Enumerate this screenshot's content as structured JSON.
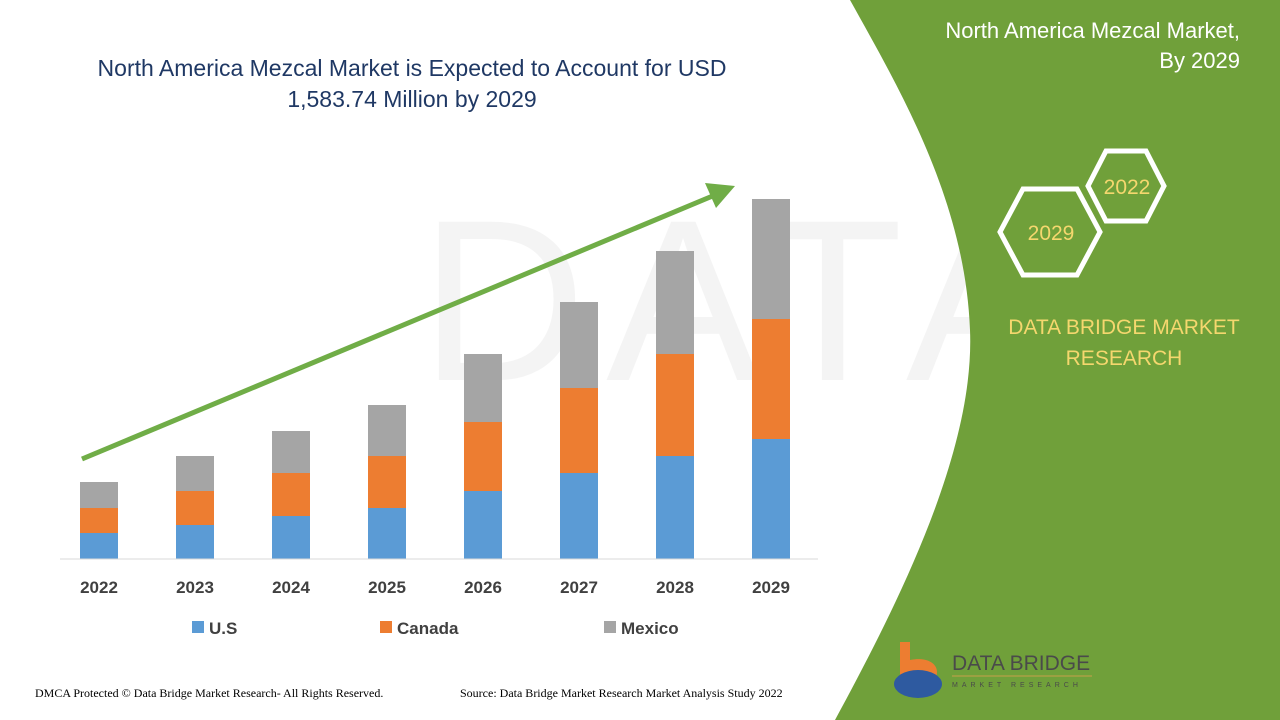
{
  "chart_data": {
    "type": "bar",
    "stacked": true,
    "title": "North America Mezcal Market is Expected to Account for USD 1,583.74 Million by 2029",
    "title_lines": [
      "North America Mezcal Market is Expected to Account for USD",
      "1,583.74 Million by 2029"
    ],
    "xlabel": "",
    "ylabel": "",
    "ylim": [
      0,
      400
    ],
    "grid": false,
    "legend_position": "bottom",
    "categories": [
      "2022",
      "2023",
      "2024",
      "2025",
      "2026",
      "2027",
      "2028",
      "2029"
    ],
    "series": [
      {
        "name": "U.S",
        "color": "#5b9bd5",
        "values": [
          26,
          34,
          43,
          51,
          68,
          86,
          103,
          120
        ]
      },
      {
        "name": "Canada",
        "color": "#ed7d31",
        "values": [
          25,
          34,
          43,
          52,
          69,
          85,
          102,
          120
        ]
      },
      {
        "name": "Mexico",
        "color": "#a5a5a5",
        "values": [
          26,
          35,
          42,
          51,
          68,
          86,
          103,
          120
        ]
      }
    ],
    "trend_arrow_color": "#70ad47"
  },
  "panel": {
    "title_line1": "North America Mezcal Market,",
    "title_line2": "By 2029",
    "hex_year_a": "2022",
    "hex_year_b": "2029",
    "brand_line1": "DATA BRIDGE MARKET",
    "brand_line2": "RESEARCH",
    "logo_text": "DATA BRIDGE",
    "logo_subtext": "MARKET RESEARCH",
    "color": "#70a03a",
    "accent": "#f5d76e"
  },
  "footer": {
    "copyright": "DMCA Protected © Data Bridge Market Research- All Rights Reserved.",
    "source": "Source: Data Bridge Market Research Market Analysis Study 2022"
  }
}
